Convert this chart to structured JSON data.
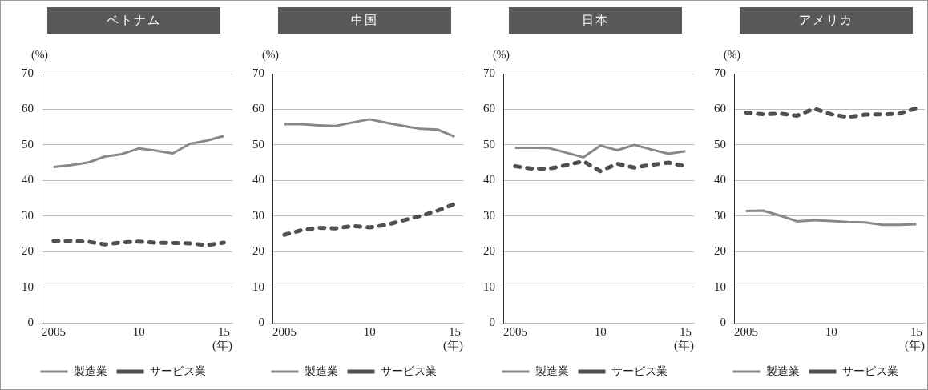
{
  "chart_data": [
    {
      "type": "line",
      "title": "ベトナム",
      "ylabel": "(%)",
      "xlabel": "(年)",
      "x": [
        2005,
        2006,
        2007,
        2008,
        2009,
        2010,
        2011,
        2012,
        2013,
        2014,
        2015
      ],
      "xlim": [
        2004.3,
        2015.5
      ],
      "xticks": [
        {
          "value": 2005,
          "label": "2005"
        },
        {
          "value": 2010,
          "label": "10"
        },
        {
          "value": 2015,
          "label": "15"
        }
      ],
      "ylim": [
        0,
        70
      ],
      "yticks": [
        0,
        10,
        20,
        30,
        40,
        50,
        60,
        70
      ],
      "grid": "y",
      "legend": "bottom",
      "marker": "none",
      "series": [
        {
          "name": "製造業",
          "color": "#888888",
          "line_style": "solid",
          "values": [
            43.8,
            44.3,
            45,
            46.7,
            47.4,
            49,
            48.4,
            47.6,
            50.3,
            51.2,
            52.5
          ]
        },
        {
          "name": "サービス業",
          "color": "#505050",
          "line_style": "dashed",
          "values": [
            23,
            23,
            22.8,
            22,
            22.6,
            22.8,
            22.5,
            22.4,
            22.3,
            21.8,
            22.5
          ]
        }
      ]
    },
    {
      "type": "line",
      "title": "中国",
      "ylabel": "(%)",
      "xlabel": "(年)",
      "x": [
        2005,
        2006,
        2007,
        2008,
        2009,
        2010,
        2011,
        2012,
        2013,
        2014,
        2015
      ],
      "xlim": [
        2004.3,
        2015.5
      ],
      "xticks": [
        {
          "value": 2005,
          "label": "2005"
        },
        {
          "value": 2010,
          "label": "10"
        },
        {
          "value": 2015,
          "label": "15"
        }
      ],
      "ylim": [
        0,
        70
      ],
      "yticks": [
        0,
        10,
        20,
        30,
        40,
        50,
        60,
        70
      ],
      "grid": "y",
      "legend": "bottom",
      "marker": "none",
      "series": [
        {
          "name": "製造業",
          "color": "#888888",
          "line_style": "solid",
          "values": [
            55.8,
            55.8,
            55.5,
            55.3,
            56.3,
            57.2,
            56.2,
            55.3,
            54.5,
            54.3,
            52.3
          ]
        },
        {
          "name": "サービス業",
          "color": "#505050",
          "line_style": "dashed",
          "values": [
            24.7,
            26,
            26.7,
            26.5,
            27.2,
            26.8,
            27.5,
            28.8,
            30,
            31.5,
            33.4
          ]
        }
      ]
    },
    {
      "type": "line",
      "title": "日本",
      "ylabel": "(%)",
      "xlabel": "(年)",
      "x": [
        2005,
        2006,
        2007,
        2008,
        2009,
        2010,
        2011,
        2012,
        2013,
        2014,
        2015
      ],
      "xlim": [
        2004.3,
        2015.5
      ],
      "xticks": [
        {
          "value": 2005,
          "label": "2005"
        },
        {
          "value": 2010,
          "label": "10"
        },
        {
          "value": 2015,
          "label": "15"
        }
      ],
      "ylim": [
        0,
        70
      ],
      "yticks": [
        0,
        10,
        20,
        30,
        40,
        50,
        60,
        70
      ],
      "grid": "y",
      "legend": "bottom",
      "marker": "none",
      "series": [
        {
          "name": "製造業",
          "color": "#888888",
          "line_style": "solid",
          "values": [
            49.2,
            49.2,
            49.1,
            47.8,
            46.5,
            49.8,
            48.5,
            50,
            48.7,
            47.5,
            48.2
          ]
        },
        {
          "name": "サービス業",
          "color": "#505050",
          "line_style": "dashed",
          "values": [
            44,
            43.3,
            43.3,
            44.3,
            45.4,
            42.6,
            44.7,
            43.6,
            44.4,
            45,
            44
          ]
        }
      ]
    },
    {
      "type": "line",
      "title": "アメリカ",
      "ylabel": "(%)",
      "xlabel": "(年)",
      "x": [
        2005,
        2006,
        2007,
        2008,
        2009,
        2010,
        2011,
        2012,
        2013,
        2014,
        2015
      ],
      "xlim": [
        2004.3,
        2015.5
      ],
      "xticks": [
        {
          "value": 2005,
          "label": "2005"
        },
        {
          "value": 2010,
          "label": "10"
        },
        {
          "value": 2015,
          "label": "15"
        }
      ],
      "ylim": [
        0,
        70
      ],
      "yticks": [
        0,
        10,
        20,
        30,
        40,
        50,
        60,
        70
      ],
      "grid": "y",
      "legend": "bottom",
      "marker": "none",
      "series": [
        {
          "name": "製造業",
          "color": "#888888",
          "line_style": "solid",
          "values": [
            31.4,
            31.5,
            30.1,
            28.5,
            28.8,
            28.6,
            28.3,
            28.2,
            27.5,
            27.5,
            27.7
          ]
        },
        {
          "name": "サービス業",
          "color": "#505050",
          "line_style": "dashed",
          "values": [
            59.1,
            58.6,
            58.8,
            58.2,
            60.2,
            58.6,
            57.8,
            58.5,
            58.6,
            58.8,
            60.3
          ]
        }
      ]
    }
  ]
}
